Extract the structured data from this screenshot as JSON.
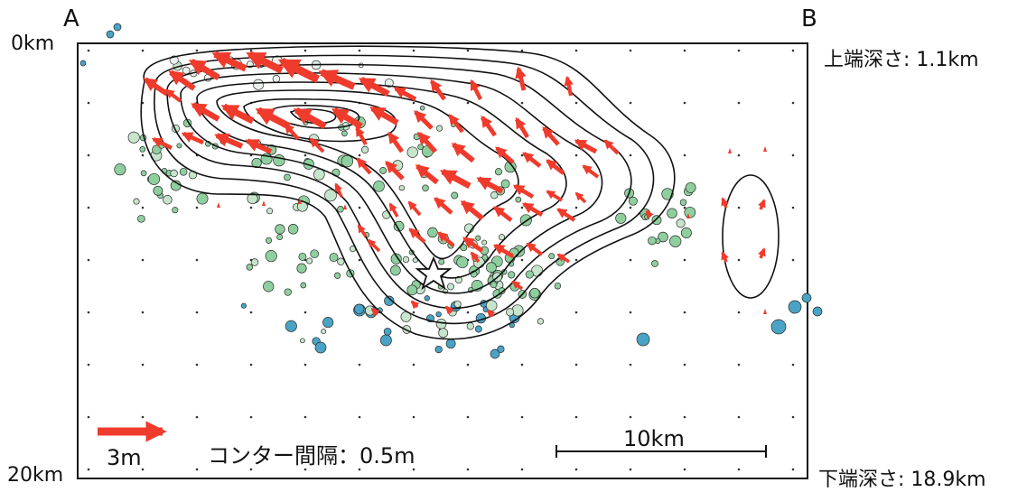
{
  "corner_labels": {
    "left": "A",
    "right": "B"
  },
  "depth_labels": {
    "top": "0km",
    "bottom": "20km"
  },
  "side_labels": {
    "top": "上端深さ: 1.1km",
    "bottom": "下端深さ: 18.9km"
  },
  "legend": {
    "arrow_label": "3m",
    "contour_note": "コンター間隔：0.5m",
    "scale_label": "10km"
  },
  "colors": {
    "slip_arrow": "#ef3b2c",
    "contour": "#111111",
    "quake_shallow": "#e8f1ea",
    "quake_mid": "#8fcf9f",
    "quake_deep": "#4aa3c4"
  }
}
